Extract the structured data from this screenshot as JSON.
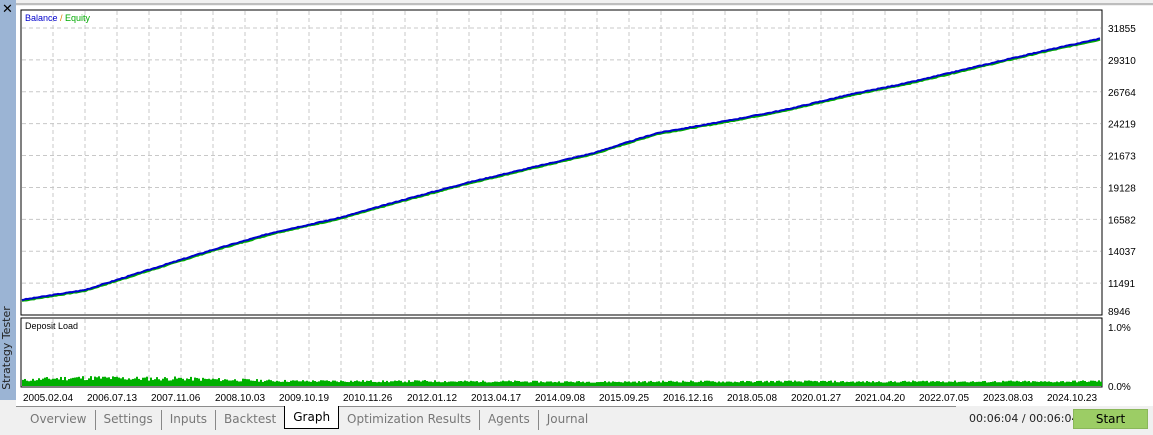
{
  "sidebar": {
    "title": "Strategy Tester",
    "close_icon": "close-icon"
  },
  "colors": {
    "balance": "#0000cc",
    "equity": "#00aa00",
    "deposit_load": "#00b000",
    "start": "#9ccd65",
    "sidebar": "#9bb4d4"
  },
  "tabs": [
    {
      "label": "Overview"
    },
    {
      "label": "Settings"
    },
    {
      "label": "Inputs"
    },
    {
      "label": "Backtest"
    },
    {
      "label": "Graph",
      "active": true
    },
    {
      "label": "Optimization Results"
    },
    {
      "label": "Agents"
    },
    {
      "label": "Journal"
    }
  ],
  "timer": "00:06:04 / 00:06:04",
  "start_label": "Start",
  "chart_data": [
    {
      "type": "line",
      "legend": {
        "balance": "Balance",
        "sep": " / ",
        "equity": "Equity"
      },
      "legend_placement": "top-left",
      "grid": true,
      "y_ticks": [
        "31855",
        "29310",
        "26764",
        "24219",
        "21673",
        "19128",
        "16582",
        "14037",
        "11491",
        "8946"
      ],
      "ylim": [
        8946,
        31855
      ],
      "x_ticks": [
        "2005.02.04",
        "2006.07.13",
        "2007.11.06",
        "2008.10.03",
        "2009.10.19",
        "2010.11.26",
        "2012.01.12",
        "2013.04.17",
        "2014.09.08",
        "2015.09.25",
        "2016.12.16",
        "2018.05.08",
        "2020.01.27",
        "2021.04.20",
        "2022.07.05",
        "2023.08.03",
        "2024.10.23"
      ],
      "series": [
        {
          "name": "Balance",
          "values": [
            10143,
            10940,
            12540,
            14130,
            15570,
            16690,
            18120,
            19480,
            20680,
            21870,
            23470,
            24350,
            25310,
            26500,
            27540,
            28740,
            29930,
            31050
          ]
        },
        {
          "name": "Equity",
          "values": [
            10080,
            10880,
            12470,
            14060,
            15500,
            16620,
            18050,
            19410,
            20610,
            21800,
            23400,
            24280,
            25240,
            26430,
            27470,
            28670,
            29860,
            30980
          ]
        }
      ]
    },
    {
      "type": "bar",
      "title": "Deposit Load",
      "y_ticks": [
        "1.0%",
        "0.0%"
      ],
      "ylim": [
        0,
        1.0
      ],
      "values": [
        0.1,
        0.15,
        0.17,
        0.16,
        0.15,
        0.15,
        0.13,
        0.11,
        0.09,
        0.08,
        0.08,
        0.08,
        0.07,
        0.08,
        0.07,
        0.07,
        0.07,
        0.06,
        0.06,
        0.06,
        0.06,
        0.07,
        0.07,
        0.06,
        0.07,
        0.07,
        0.07,
        0.06,
        0.06,
        0.07,
        0.07,
        0.06,
        0.07,
        0.06,
        0.07,
        0.08
      ]
    }
  ]
}
